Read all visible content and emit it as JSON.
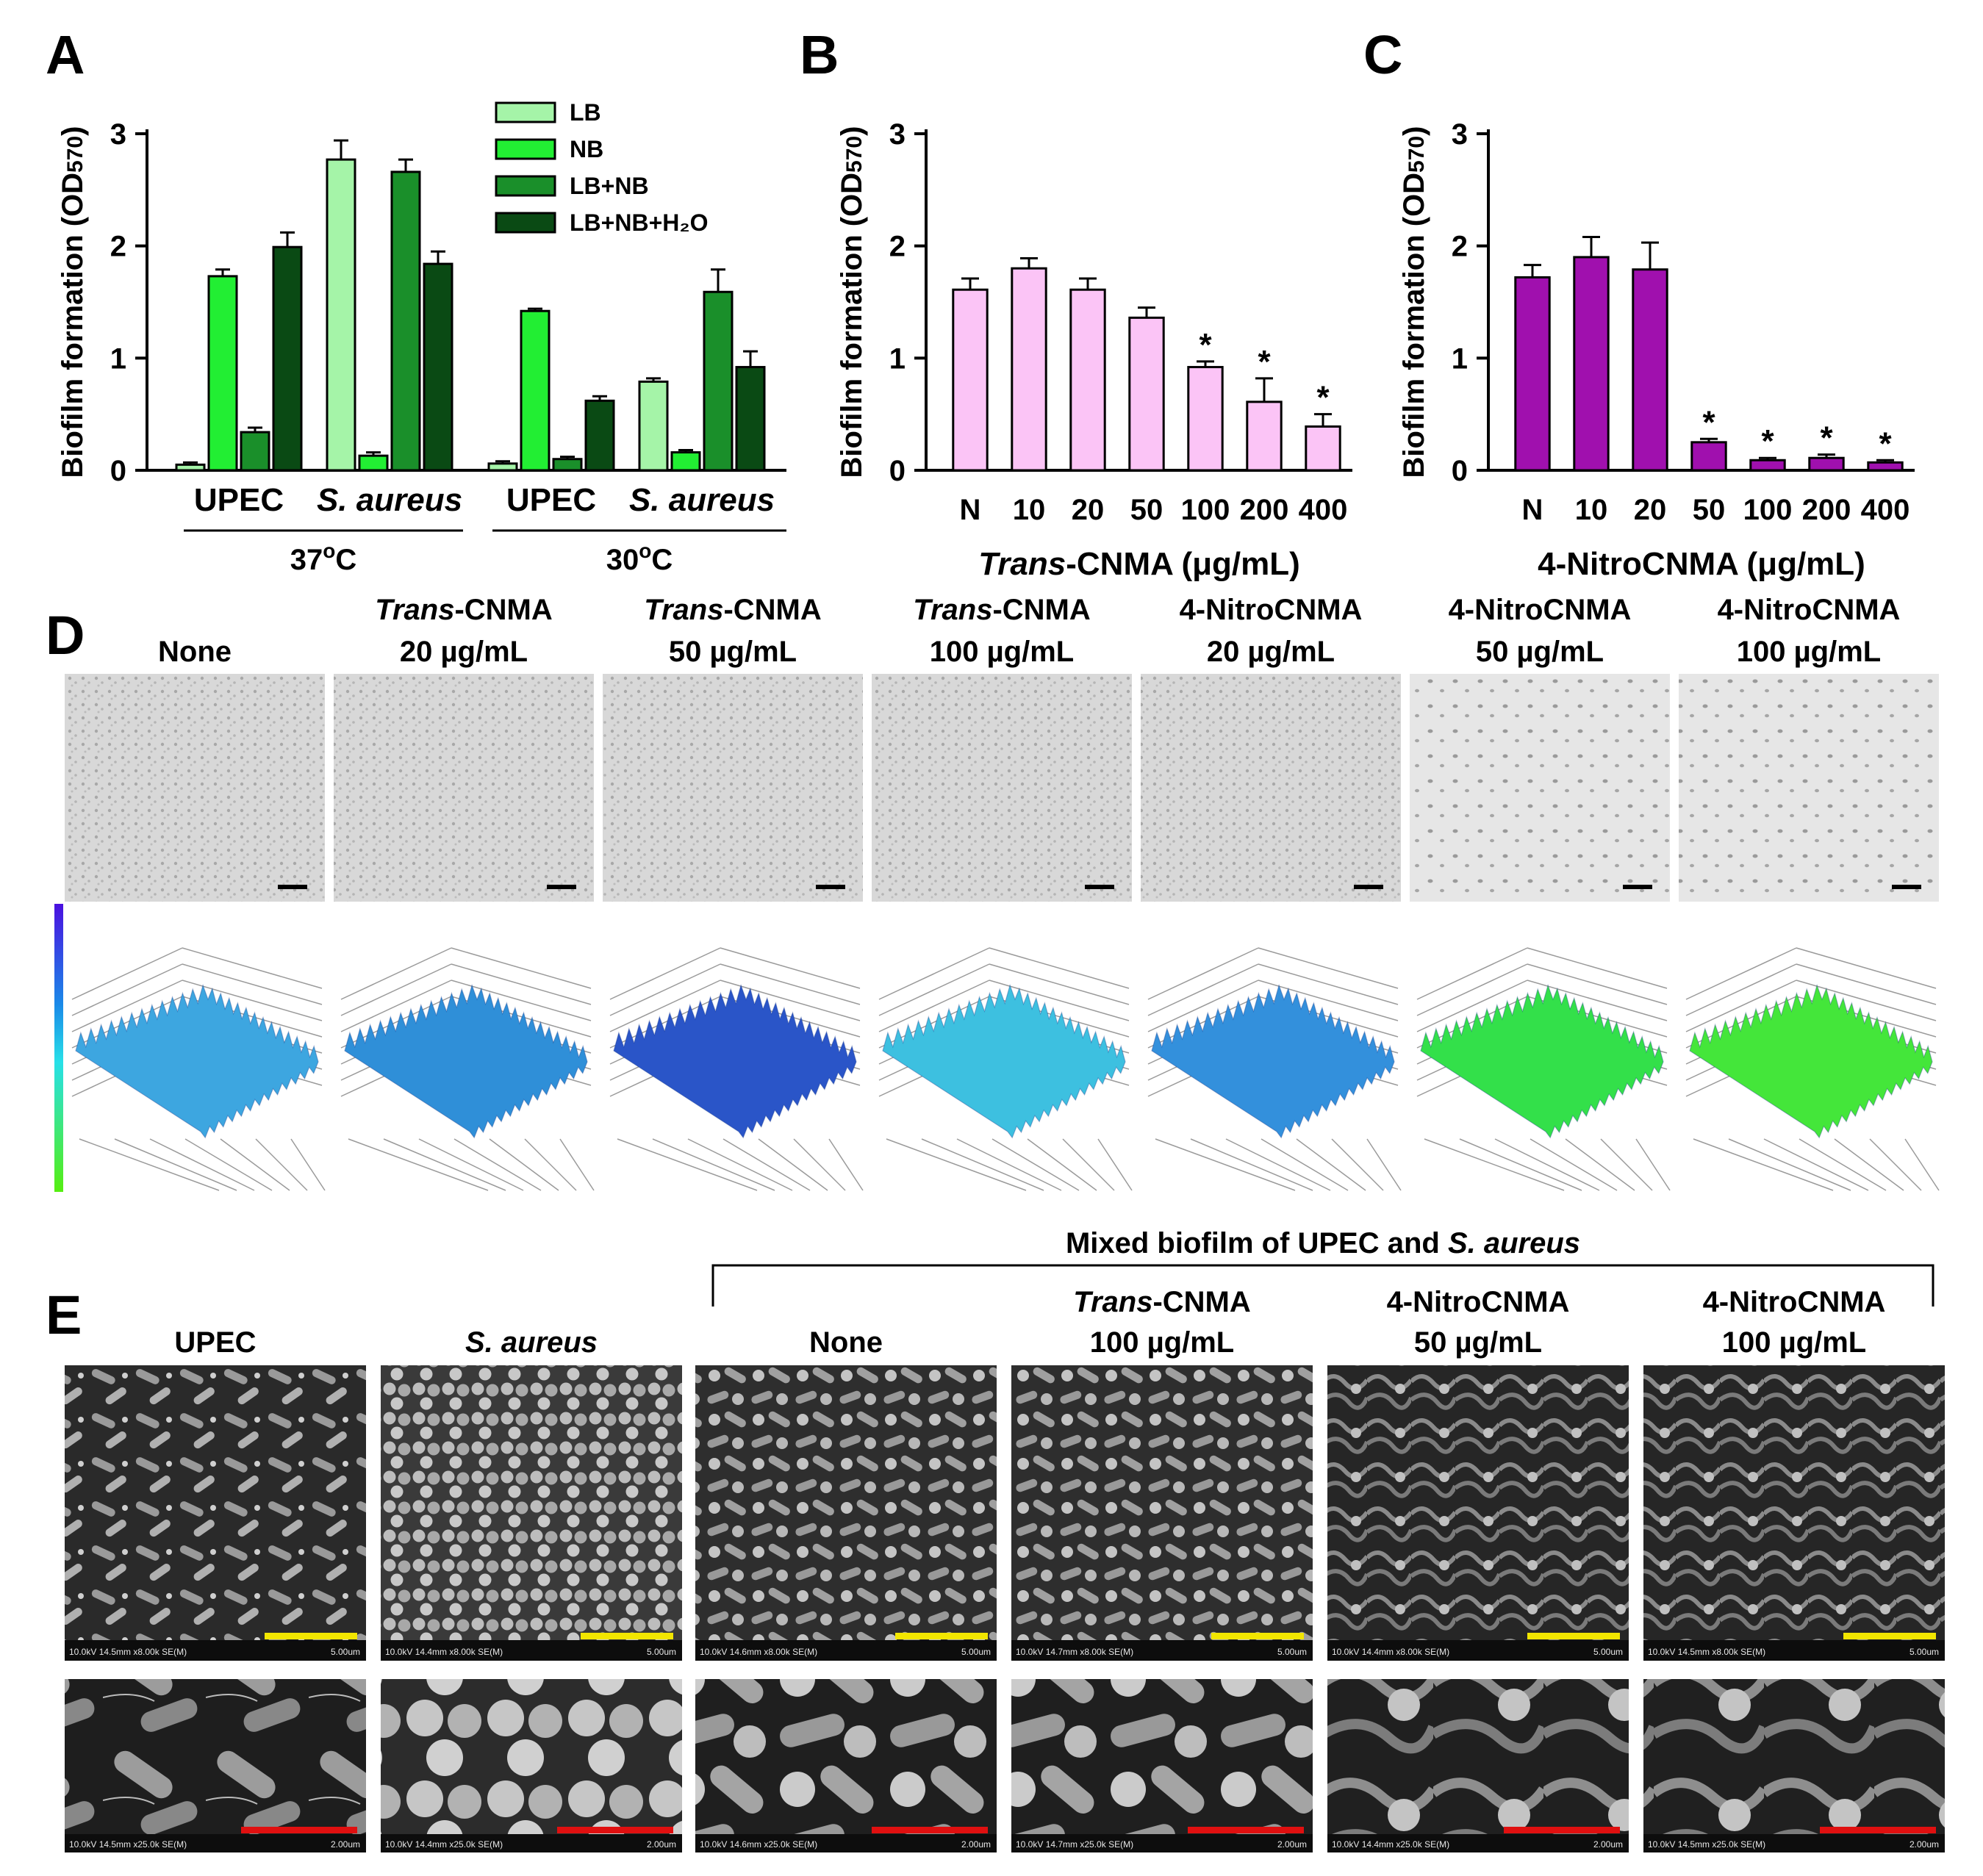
{
  "panel_letters": [
    "A",
    "B",
    "C",
    "D",
    "E"
  ],
  "colors": {
    "LB": "#a5f4a8",
    "NB": "#22ee33",
    "LB+NB": "#1a8f2a",
    "LB+NB+H2O": "#0a4a14",
    "trans": "#fbc4f6",
    "nitro": "#a010ae"
  },
  "chart_data": [
    {
      "id": "A",
      "type": "bar",
      "ylabel_main": "Biofilm formation (OD",
      "ylabel_sub": "570",
      "ylabel_end": ")",
      "ylim": [
        0,
        3
      ],
      "yticks": [
        0,
        1,
        2,
        3
      ],
      "categories": [
        "UPEC",
        "S. aureus",
        "UPEC",
        "S. aureus"
      ],
      "category_italic": [
        false,
        true,
        false,
        true
      ],
      "groups": [
        {
          "label_main": "37",
          "label_sup": "o",
          "label_end": "C"
        },
        {
          "label_main": "30",
          "label_sup": "o",
          "label_end": "C"
        }
      ],
      "series": [
        {
          "name": "LB",
          "values": [
            0.05,
            2.77,
            0.06,
            0.79
          ],
          "errors": [
            0.02,
            0.17,
            0.02,
            0.03
          ]
        },
        {
          "name": "NB",
          "values": [
            1.73,
            0.13,
            1.42,
            0.16
          ],
          "errors": [
            0.06,
            0.03,
            0.02,
            0.02
          ]
        },
        {
          "name": "LB+NB",
          "values": [
            0.34,
            2.66,
            0.1,
            1.59
          ],
          "errors": [
            0.04,
            0.11,
            0.02,
            0.2
          ]
        },
        {
          "name": "LB+NB+H2O",
          "values": [
            1.99,
            1.84,
            0.62,
            0.92
          ],
          "errors": [
            0.13,
            0.11,
            0.04,
            0.14
          ]
        }
      ],
      "legend_labels": [
        "LB",
        "NB",
        "LB+NB",
        "LB+NB+H₂O"
      ]
    },
    {
      "id": "B",
      "type": "bar",
      "ylabel_main": "Biofilm formation (OD",
      "ylabel_sub": "570",
      "ylabel_end": ")",
      "ylim": [
        0,
        3
      ],
      "yticks": [
        0,
        1,
        2,
        3
      ],
      "categories": [
        "N",
        "10",
        "20",
        "50",
        "100",
        "200",
        "400"
      ],
      "values": [
        1.61,
        1.8,
        1.61,
        1.36,
        0.92,
        0.61,
        0.39
      ],
      "errors": [
        0.1,
        0.09,
        0.1,
        0.09,
        0.05,
        0.21,
        0.11
      ],
      "significance": [
        "",
        "",
        "",
        "",
        "*",
        "*",
        "*"
      ],
      "xlabel_italic": "Trans",
      "xlabel_rest": "-CNMA (μg/mL)"
    },
    {
      "id": "C",
      "type": "bar",
      "ylabel_main": "Biofilm formation (OD",
      "ylabel_sub": "570",
      "ylabel_end": ")",
      "ylim": [
        0,
        3
      ],
      "yticks": [
        0,
        1,
        2,
        3
      ],
      "categories": [
        "N",
        "10",
        "20",
        "50",
        "100",
        "200",
        "400"
      ],
      "values": [
        1.72,
        1.9,
        1.79,
        0.25,
        0.09,
        0.11,
        0.07
      ],
      "errors": [
        0.11,
        0.18,
        0.24,
        0.03,
        0.02,
        0.03,
        0.02
      ],
      "significance": [
        "",
        "",
        "",
        "*",
        "*",
        "*",
        "*"
      ],
      "xlabel_italic": "",
      "xlabel_rest": "4-NitroCNMA (μg/mL)"
    }
  ],
  "panel_d": {
    "columns": [
      {
        "line1_italic": "",
        "line1": "",
        "line2": "None"
      },
      {
        "line1_italic": "Trans",
        "line1": "-CNMA",
        "line2": "20 µg/mL"
      },
      {
        "line1_italic": "Trans",
        "line1": "-CNMA",
        "line2": "50 µg/mL"
      },
      {
        "line1_italic": "Trans",
        "line1": "-CNMA",
        "line2": "100 µg/mL"
      },
      {
        "line1_italic": "",
        "line1": "4-NitroCNMA",
        "line2": "20 µg/mL"
      },
      {
        "line1_italic": "",
        "line1": "4-NitroCNMA",
        "line2": "50 µg/mL"
      },
      {
        "line1_italic": "",
        "line1": "4-NitroCNMA",
        "line2": "100 µg/mL"
      }
    ],
    "surface_colors": [
      "#3da6e0",
      "#2f8fd8",
      "#2a55c8",
      "#3dc0e0",
      "#3390dc",
      "#33e04a",
      "#44e63a"
    ]
  },
  "panel_e": {
    "bracket_label_pre": "Mixed biofilm of UPEC and ",
    "bracket_label_italic": "S. aureus",
    "columns": [
      {
        "line1_italic": "",
        "line1": "",
        "line2": "UPEC",
        "line2_italic": false
      },
      {
        "line1_italic": "",
        "line1": "",
        "line2": "S. aureus",
        "line2_italic": true
      },
      {
        "line1_italic": "",
        "line1": "",
        "line2": "None",
        "line2_italic": false
      },
      {
        "line1_italic": "Trans",
        "line1": "-CNMA",
        "line2": "100 µg/mL",
        "line2_italic": false
      },
      {
        "line1_italic": "",
        "line1": "4-NitroCNMA",
        "line2": "50 µg/mL",
        "line2_italic": false
      },
      {
        "line1_italic": "",
        "line1": "4-NitroCNMA",
        "line2": "100 µg/mL",
        "line2_italic": false
      }
    ],
    "sem_top": [
      "10.0kV 14.5mm x8.00k SE(M)",
      "10.0kV 14.4mm x8.00k SE(M)",
      "10.0kV 14.6mm x8.00k SE(M)",
      "10.0kV 14.7mm x8.00k SE(M)",
      "10.0kV 14.4mm x8.00k SE(M)",
      "10.0kV 14.5mm x8.00k SE(M)"
    ],
    "sem_bottom": [
      "10.0kV 14.5mm x25.0k SE(M)",
      "10.0kV 14.4mm x25.0k SE(M)",
      "10.0kV 14.6mm x25.0k SE(M)",
      "10.0kV 14.7mm x25.0k SE(M)",
      "10.0kV 14.4mm x25.0k SE(M)",
      "10.0kV 14.5mm x25.0k SE(M)"
    ],
    "scale_top": "5.00um",
    "scale_bottom": "2.00um",
    "scale_top_color": "#f2e600",
    "scale_bottom_color": "#e01010"
  }
}
